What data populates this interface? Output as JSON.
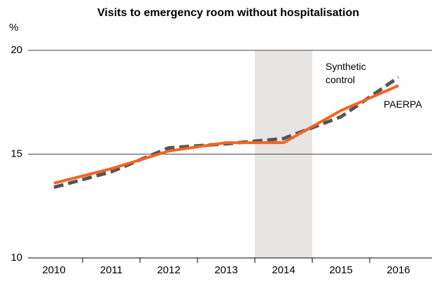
{
  "chart_data": {
    "type": "line",
    "title": "Visits to emergency room without hospitalisation",
    "y_label": "%",
    "categories": [
      "2010",
      "2011",
      "2012",
      "2013",
      "2014",
      "2015",
      "2016"
    ],
    "highlight": "2014",
    "series": [
      {
        "name": "Synthetic control",
        "color": "#555555",
        "dashed": true,
        "values": [
          13.4,
          14.15,
          15.3,
          15.5,
          15.75,
          16.8,
          18.7
        ]
      },
      {
        "name": "PAERPA",
        "color": "#f26522",
        "dashed": false,
        "values": [
          13.6,
          14.3,
          15.15,
          15.55,
          15.55,
          17.1,
          18.3
        ]
      }
    ],
    "ylim": [
      10,
      20
    ],
    "yticks": [
      10,
      15,
      20
    ],
    "grid": true
  }
}
